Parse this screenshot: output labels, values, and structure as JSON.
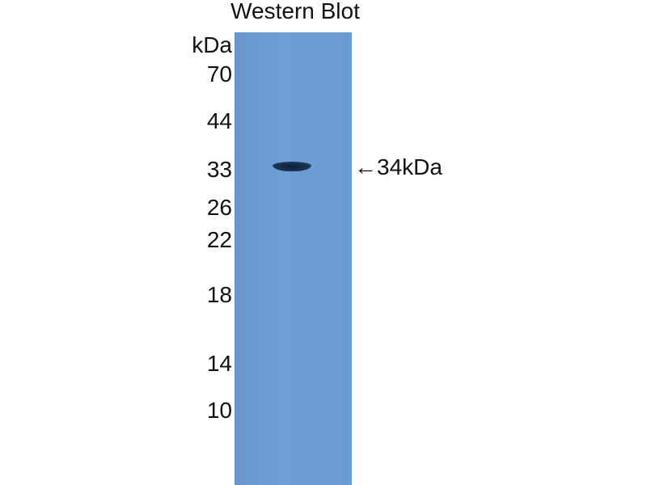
{
  "title": "Western Blot",
  "unit_label": "kDa",
  "markers": [
    "70",
    "44",
    "33",
    "26",
    "22",
    "18",
    "14",
    "10"
  ],
  "band_label": "←34kDa",
  "colors": {
    "membrane": "#6b9dd2",
    "band": "#142a45"
  }
}
